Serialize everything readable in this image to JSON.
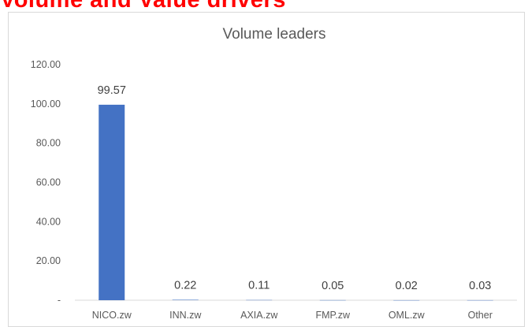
{
  "page_heading": "Volume and Value drivers",
  "chart_data": {
    "type": "bar",
    "title": "Volume leaders",
    "categories": [
      "NICO.zw",
      "INN.zw",
      "AXIA.zw",
      "FMP.zw",
      "OML.zw",
      "Other"
    ],
    "values": [
      99.57,
      0.22,
      0.11,
      0.05,
      0.02,
      0.03
    ],
    "data_labels": [
      "99.57",
      "0.22",
      "0.11",
      "0.05",
      "0.02",
      "0.03"
    ],
    "y_ticks": [
      0,
      20,
      40,
      60,
      80,
      100,
      120
    ],
    "y_tick_labels": [
      "-",
      "20.00",
      "40.00",
      "60.00",
      "80.00",
      "100.00",
      "120.00"
    ],
    "ylim": [
      0,
      120
    ],
    "grid": false,
    "legend": "none",
    "bar_color": "#4472c4"
  }
}
